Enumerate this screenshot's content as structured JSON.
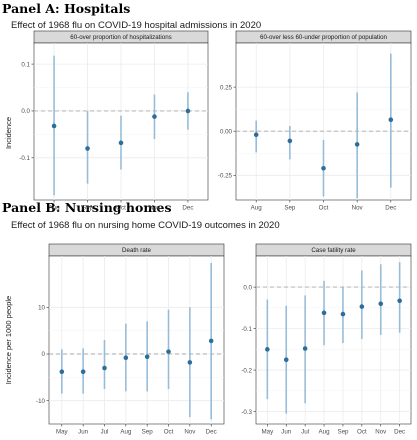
{
  "panel_a": {
    "heading": "Panel A: Hospitals",
    "title": "Effect of 1968 flu on COVID-19 hospital admissions in 2020",
    "ylabel": "Incidence"
  },
  "panel_b": {
    "heading": "Panel B: Nursing homes",
    "title": "Effect of 1968 flu on nursing home COVID-19 outcomes in 2020",
    "ylabel": "Incidence per 1000 people"
  },
  "colors": {
    "point": "#2c6e97",
    "error_bar": "#98bcd8",
    "zero_line": "#aaaaaa",
    "grid": "#ebebeb",
    "strip_fill": "#d9d9d9"
  },
  "chart_data": [
    {
      "type": "scatter",
      "facet": "60-over proportion of hospitalizations",
      "categories": [
        "Aug",
        "Sep",
        "Oct",
        "Nov",
        "Dec"
      ],
      "estimate": [
        -0.032,
        -0.08,
        -0.068,
        -0.012,
        0.0
      ],
      "ci_low": [
        -0.18,
        -0.155,
        -0.125,
        -0.06,
        -0.04
      ],
      "ci_high": [
        0.118,
        0.0,
        -0.01,
        0.035,
        0.04
      ],
      "yticks": [
        -0.1,
        0.0,
        0.1
      ],
      "ylim": [
        -0.19,
        0.145
      ],
      "reference_line": 0,
      "grid": true
    },
    {
      "type": "scatter",
      "facet": "60-over less 60-under proportion of population",
      "categories": [
        "Aug",
        "Sep",
        "Oct",
        "Nov",
        "Dec"
      ],
      "estimate": [
        -0.02,
        -0.055,
        -0.21,
        -0.075,
        0.065
      ],
      "ci_low": [
        -0.12,
        -0.16,
        -0.37,
        -0.38,
        -0.32
      ],
      "ci_high": [
        0.06,
        0.03,
        -0.05,
        0.22,
        0.44
      ],
      "yticks": [
        -0.25,
        0.0,
        0.25
      ],
      "ylim": [
        -0.39,
        0.5
      ],
      "reference_line": 0,
      "grid": true
    },
    {
      "type": "scatter",
      "facet": "Death rate",
      "categories": [
        "May",
        "Jun",
        "Jul",
        "Aug",
        "Sep",
        "Oct",
        "Nov",
        "Dec"
      ],
      "estimate": [
        -3.8,
        -3.8,
        -3.0,
        -0.8,
        -0.6,
        0.5,
        -1.8,
        2.8
      ],
      "ci_low": [
        -8.5,
        -8.5,
        -7.5,
        -8.0,
        -8.0,
        -7.5,
        -13.5,
        -14.0
      ],
      "ci_high": [
        1.0,
        1.2,
        3.0,
        6.5,
        7.0,
        9.5,
        10.0,
        19.5
      ],
      "yticks": [
        -10,
        0,
        10
      ],
      "ylim": [
        -15,
        21
      ],
      "reference_line": 0,
      "grid": true
    },
    {
      "type": "scatter",
      "facet": "Case fatility rate",
      "categories": [
        "May",
        "Jun",
        "Jul",
        "Aug",
        "Sep",
        "Oct",
        "Nov",
        "Dec"
      ],
      "estimate": [
        -0.15,
        -0.175,
        -0.148,
        -0.062,
        -0.065,
        -0.047,
        -0.04,
        -0.033
      ],
      "ci_low": [
        -0.27,
        -0.305,
        -0.28,
        -0.14,
        -0.135,
        -0.125,
        -0.115,
        -0.11
      ],
      "ci_high": [
        -0.03,
        -0.045,
        -0.02,
        0.015,
        0.0,
        0.04,
        0.055,
        0.06
      ],
      "yticks": [
        -0.3,
        -0.2,
        -0.1,
        0.0
      ],
      "ylim": [
        -0.33,
        0.075
      ],
      "reference_line": 0,
      "grid": true
    }
  ]
}
